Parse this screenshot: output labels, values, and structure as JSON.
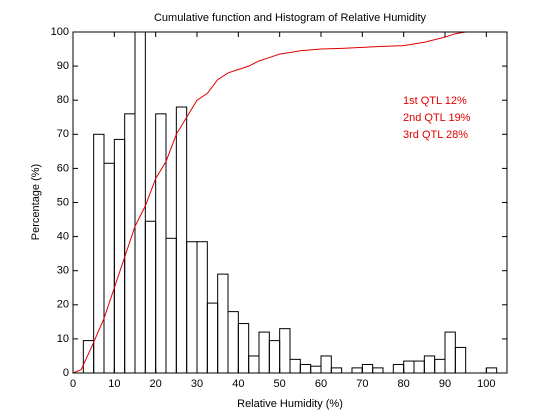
{
  "chart_data": {
    "type": "histogram",
    "title": "Cumulative function and Histogram of Relative Humidity",
    "xlabel": "Relative Humidity (%)",
    "ylabel": "Percentage (%)",
    "color": "#000000",
    "bins": [
      0,
      2.5,
      5,
      7.5,
      10,
      12.5,
      15,
      17.5,
      20,
      22.5,
      25,
      27.5,
      30,
      32.5,
      35,
      37.5,
      40,
      42.5,
      45,
      47.5,
      50,
      52.5,
      55,
      57.5,
      60,
      62.5,
      65,
      67.5,
      70,
      72.5,
      75,
      77.5,
      80,
      82.5,
      85,
      87.5,
      90,
      92.5,
      95,
      97.5,
      100,
      102.5,
      105
    ],
    "values": [
      0,
      9.5,
      70,
      61.5,
      68.5,
      76,
      100,
      44.5,
      76,
      39.5,
      78,
      38.5,
      38.5,
      20.5,
      29,
      18,
      14.5,
      5,
      12,
      9.5,
      13,
      4,
      2.5,
      2,
      5,
      1.5,
      0,
      1.5,
      2.5,
      1.5,
      0,
      2.5,
      3.5,
      3.5,
      5,
      4,
      12,
      7.5,
      0,
      0,
      1.5,
      0
    ],
    "overlay": {
      "type": "line",
      "color": "#e00000",
      "x": [
        0,
        2,
        5,
        7.5,
        10,
        12.5,
        15,
        17.5,
        20,
        22.5,
        25,
        27.5,
        30,
        32.5,
        35,
        37.5,
        40,
        42.5,
        45,
        47.5,
        50,
        52.5,
        55,
        60,
        65,
        70,
        75,
        80,
        85,
        90,
        92.5,
        95,
        105
      ],
      "values": [
        0,
        1,
        9,
        16,
        25,
        34,
        43,
        49,
        57,
        62,
        70,
        75,
        80,
        82,
        86,
        88,
        89,
        90,
        91.5,
        92.5,
        93.5,
        94,
        94.5,
        95,
        95.2,
        95.5,
        95.8,
        96,
        97,
        98.5,
        99.5,
        100,
        100
      ]
    },
    "annotations": [
      "1st QTL  12%",
      "2nd QTL  19%",
      "3rd QTL  28%"
    ],
    "xlim": [
      0,
      105
    ],
    "ylim": [
      0,
      100
    ],
    "xticks": [
      0,
      10,
      20,
      30,
      40,
      50,
      60,
      70,
      80,
      90,
      100
    ],
    "yticks": [
      0,
      10,
      20,
      30,
      40,
      50,
      60,
      70,
      80,
      90,
      100
    ]
  }
}
